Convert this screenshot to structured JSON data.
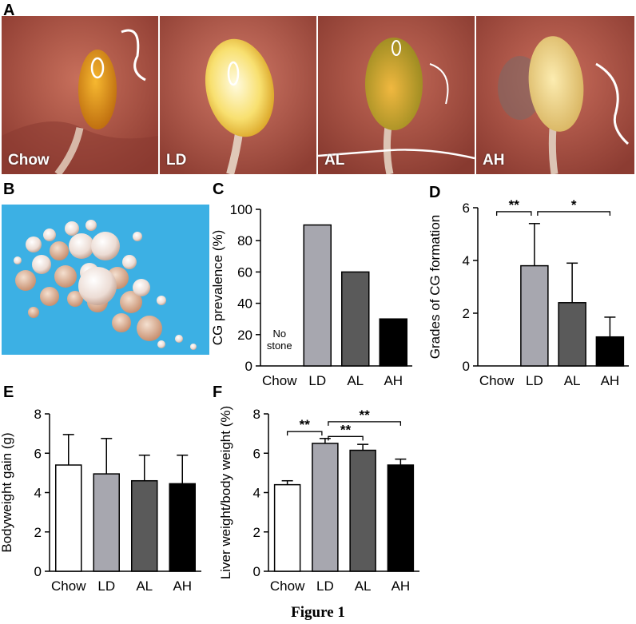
{
  "panels": {
    "a": "A",
    "b": "B",
    "c": "C",
    "d": "D",
    "e": "E",
    "f": "F"
  },
  "photos": [
    {
      "label": "Chow",
      "liver_color": "#b5584a",
      "gb_color": "#e8a020"
    },
    {
      "label": "LD",
      "liver_color": "#c06452",
      "gb_color": "#fff4a8"
    },
    {
      "label": "AL",
      "liver_color": "#b85c4c",
      "gb_color": "#d8a838"
    },
    {
      "label": "AH",
      "liver_color": "#bd6050",
      "gb_color": "#f4d888"
    }
  ],
  "caption": "Figure 1",
  "colors": {
    "Chow": "#ffffff",
    "LD": "#a7a7af",
    "AL": "#5a5a5a",
    "AH": "#000000",
    "stone_bg": "#3fb4e6"
  },
  "chart_data": [
    {
      "id": "C",
      "type": "bar",
      "categories": [
        "Chow",
        "LD",
        "AL",
        "AH"
      ],
      "values": [
        0,
        90,
        60,
        30
      ],
      "ylabel": "CG prevalence (%)",
      "ylim": [
        0,
        100
      ],
      "yticks": [
        0,
        20,
        40,
        60,
        80,
        100
      ],
      "annotation": [
        "No",
        "stone"
      ]
    },
    {
      "id": "D",
      "type": "bar",
      "categories": [
        "Chow",
        "LD",
        "AL",
        "AH"
      ],
      "values": [
        0,
        3.8,
        2.4,
        1.1
      ],
      "errors": [
        0,
        1.6,
        1.5,
        0.75
      ],
      "ylabel": "Grades of CG formation",
      "ylim": [
        0,
        6
      ],
      "yticks": [
        0,
        2,
        4,
        6
      ],
      "significance": [
        {
          "from": 0,
          "to": 1,
          "label": "**",
          "y": 5.85
        },
        {
          "from": 1,
          "to": 3,
          "label": "*",
          "y": 5.85
        }
      ]
    },
    {
      "id": "E",
      "type": "bar",
      "categories": [
        "Chow",
        "LD",
        "AL",
        "AH"
      ],
      "values": [
        5.4,
        4.95,
        4.6,
        4.45
      ],
      "errors": [
        1.55,
        1.8,
        1.3,
        1.45
      ],
      "ylabel": "Bodyweight gain (g)",
      "ylim": [
        0,
        8
      ],
      "yticks": [
        0,
        2,
        4,
        6,
        8
      ]
    },
    {
      "id": "F",
      "type": "bar",
      "categories": [
        "Chow",
        "LD",
        "AL",
        "AH"
      ],
      "values": [
        4.4,
        6.5,
        6.15,
        5.4
      ],
      "errors": [
        0.2,
        0.25,
        0.3,
        0.3
      ],
      "ylabel": "Liver weight/body weight  (%)",
      "ylim": [
        0,
        8
      ],
      "yticks": [
        0,
        2,
        4,
        6,
        8
      ],
      "significance": [
        {
          "from": 0,
          "to": 1,
          "label": "**",
          "y": 7.1
        },
        {
          "from": 1,
          "to": 2,
          "label": "**",
          "y": 6.85
        },
        {
          "from": 1,
          "to": 3,
          "label": "**",
          "y": 7.6
        }
      ]
    }
  ]
}
